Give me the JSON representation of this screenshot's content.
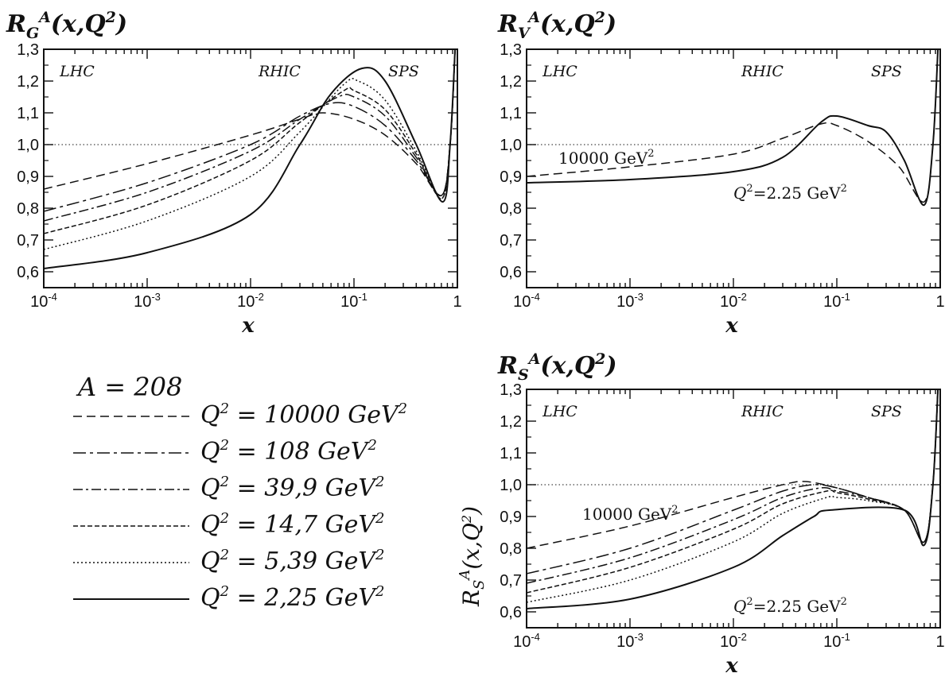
{
  "legend": {
    "a_label": "A = 208",
    "entries": [
      {
        "q2": "Q",
        "eq": " = 10000 GeV",
        "style": "dash"
      },
      {
        "q2": "Q",
        "eq": " = 108  GeV",
        "style": "longdash"
      },
      {
        "q2": "Q",
        "eq": " = 39,9 GeV",
        "style": "dashdot"
      },
      {
        "q2": "Q",
        "eq": " = 14,7 GeV",
        "style": "shortdash"
      },
      {
        "q2": "Q",
        "eq": " = 5,39 GeV",
        "style": "dot"
      },
      {
        "q2": "Q",
        "eq": " = 2,25 GeV",
        "style": "solid"
      }
    ]
  },
  "x_tick_labels": [
    "10",
    "10",
    "10",
    "10",
    "1"
  ],
  "x_tick_exps": [
    "-4",
    "-3",
    "-2",
    "-1",
    ""
  ],
  "y_tick_labels": [
    "0,6",
    "0,7",
    "0,8",
    "0,9",
    "1,0",
    "1,1",
    "1,2",
    "1,3"
  ],
  "regions": [
    "LHC",
    "RHIC",
    "SPS"
  ],
  "panels": {
    "g": {
      "title_main": "R",
      "title_sub": "G",
      "title_sup": "A",
      "title_rest": "(x,Q",
      "xlabel": "x"
    },
    "v": {
      "title_main": "R",
      "title_sub": "V",
      "title_sup": "A",
      "title_rest": "(x,Q",
      "xlabel": "x",
      "ann_high": "10000 GeV",
      "ann_low_pre": "Q",
      "ann_low": "=2.25 GeV"
    },
    "s": {
      "title_main": "R",
      "title_sub": "S",
      "title_sup": "A",
      "title_rest": "(x,Q",
      "xlabel": "x",
      "ylabel": "R",
      "ann_high": "10000 GeV",
      "ann_low_pre": "Q",
      "ann_low": "=2.25 GeV"
    }
  },
  "chart_data": [
    {
      "type": "line",
      "title": "R_G^A(x,Q^2)",
      "xlabel": "x",
      "xscale": "log",
      "xlim": [
        0.0001,
        1
      ],
      "ylim": [
        0.55,
        1.3
      ],
      "reference_line": 1.0,
      "series": [
        {
          "name": "Q^2 = 10000 GeV^2",
          "x": [
            0.0001,
            0.001,
            0.01,
            0.03,
            0.05,
            0.1,
            0.2,
            0.4,
            0.7,
            0.85,
            0.95
          ],
          "y": [
            0.86,
            0.94,
            1.03,
            1.08,
            1.1,
            1.08,
            1.03,
            0.94,
            0.84,
            1.0,
            1.3
          ]
        },
        {
          "name": "Q^2 = 108 GeV^2",
          "x": [
            0.0001,
            0.001,
            0.01,
            0.03,
            0.06,
            0.1,
            0.2,
            0.4,
            0.7,
            0.85,
            0.95
          ],
          "y": [
            0.79,
            0.88,
            1.0,
            1.09,
            1.13,
            1.12,
            1.06,
            0.95,
            0.84,
            1.0,
            1.3
          ]
        },
        {
          "name": "Q^2 = 39,9 GeV^2",
          "x": [
            0.0001,
            0.001,
            0.01,
            0.03,
            0.07,
            0.1,
            0.2,
            0.4,
            0.7,
            0.85,
            0.95
          ],
          "y": [
            0.76,
            0.85,
            0.98,
            1.08,
            1.15,
            1.15,
            1.09,
            0.96,
            0.84,
            1.0,
            1.3
          ]
        },
        {
          "name": "Q^2 = 14,7 GeV^2",
          "x": [
            0.0001,
            0.001,
            0.01,
            0.03,
            0.08,
            0.1,
            0.2,
            0.4,
            0.7,
            0.85,
            0.95
          ],
          "y": [
            0.72,
            0.81,
            0.95,
            1.07,
            1.17,
            1.17,
            1.11,
            0.97,
            0.83,
            1.0,
            1.3
          ]
        },
        {
          "name": "Q^2 = 5,39 GeV^2",
          "x": [
            0.0001,
            0.001,
            0.01,
            0.03,
            0.08,
            0.11,
            0.2,
            0.4,
            0.7,
            0.85,
            0.95
          ],
          "y": [
            0.67,
            0.76,
            0.9,
            1.04,
            1.19,
            1.2,
            1.14,
            0.98,
            0.83,
            1.0,
            1.3
          ]
        },
        {
          "name": "Q^2 = 2,25 GeV^2",
          "x": [
            0.0001,
            0.001,
            0.01,
            0.03,
            0.06,
            0.12,
            0.2,
            0.4,
            0.72,
            0.85,
            0.95
          ],
          "y": [
            0.61,
            0.66,
            0.78,
            1.0,
            1.16,
            1.24,
            1.2,
            1.0,
            0.82,
            1.0,
            1.3
          ]
        }
      ]
    },
    {
      "type": "line",
      "title": "R_V^A(x,Q^2)",
      "xlabel": "x",
      "xscale": "log",
      "xlim": [
        0.0001,
        1
      ],
      "ylim": [
        0.55,
        1.3
      ],
      "reference_line": 1.0,
      "series": [
        {
          "name": "10000 GeV^2",
          "x": [
            0.0001,
            0.001,
            0.01,
            0.03,
            0.07,
            0.1,
            0.2,
            0.4,
            0.7,
            0.85,
            0.95
          ],
          "y": [
            0.9,
            0.93,
            0.97,
            1.02,
            1.065,
            1.06,
            1.01,
            0.93,
            0.82,
            1.0,
            1.3
          ]
        },
        {
          "name": "Q^2=2.25 GeV^2",
          "x": [
            0.0001,
            0.001,
            0.01,
            0.03,
            0.07,
            0.1,
            0.2,
            0.3,
            0.45,
            0.7,
            0.85,
            0.95
          ],
          "y": [
            0.88,
            0.89,
            0.915,
            0.96,
            1.07,
            1.09,
            1.06,
            1.04,
            0.95,
            0.81,
            1.0,
            1.3
          ]
        }
      ]
    },
    {
      "type": "line",
      "title": "R_S^A(x,Q^2)",
      "xlabel": "x",
      "ylabel": "R_S^A(x,Q^2)",
      "xscale": "log",
      "xlim": [
        0.0001,
        1
      ],
      "ylim": [
        0.55,
        1.3
      ],
      "reference_line": 1.0,
      "series": [
        {
          "name": "10000 GeV^2",
          "x": [
            0.0001,
            0.001,
            0.01,
            0.03,
            0.05,
            0.1,
            0.2,
            0.45,
            0.7,
            0.85,
            0.95
          ],
          "y": [
            0.8,
            0.87,
            0.96,
            1.0,
            1.01,
            0.99,
            0.96,
            0.92,
            0.82,
            1.0,
            1.3
          ]
        },
        {
          "name": "Q^2 = 108 GeV^2",
          "x": [
            0.0001,
            0.001,
            0.01,
            0.03,
            0.06,
            0.1,
            0.2,
            0.45,
            0.7,
            0.85,
            0.95
          ],
          "y": [
            0.72,
            0.8,
            0.92,
            0.98,
            1.0,
            0.99,
            0.96,
            0.92,
            0.82,
            1.0,
            1.3
          ]
        },
        {
          "name": "Q^2 = 39,9 GeV^2",
          "x": [
            0.0001,
            0.001,
            0.01,
            0.03,
            0.07,
            0.1,
            0.2,
            0.45,
            0.7,
            0.85,
            0.95
          ],
          "y": [
            0.69,
            0.77,
            0.89,
            0.96,
            0.99,
            0.98,
            0.96,
            0.92,
            0.82,
            1.0,
            1.3
          ]
        },
        {
          "name": "Q^2 = 14,7 GeV^2",
          "x": [
            0.0001,
            0.001,
            0.01,
            0.03,
            0.08,
            0.1,
            0.2,
            0.45,
            0.7,
            0.85,
            0.95
          ],
          "y": [
            0.66,
            0.74,
            0.86,
            0.94,
            0.98,
            0.975,
            0.955,
            0.92,
            0.82,
            1.0,
            1.3
          ]
        },
        {
          "name": "Q^2 = 5,39 GeV^2",
          "x": [
            0.0001,
            0.001,
            0.01,
            0.03,
            0.08,
            0.1,
            0.2,
            0.45,
            0.7,
            0.85,
            0.95
          ],
          "y": [
            0.63,
            0.7,
            0.82,
            0.91,
            0.96,
            0.96,
            0.95,
            0.92,
            0.82,
            1.0,
            1.3
          ]
        },
        {
          "name": "Q^2=2.25 GeV^2",
          "x": [
            0.0001,
            0.001,
            0.01,
            0.03,
            0.06,
            0.085,
            0.45,
            0.7,
            0.85,
            0.95
          ],
          "y": [
            0.61,
            0.64,
            0.74,
            0.84,
            0.9,
            0.92,
            0.92,
            0.81,
            1.0,
            1.3
          ]
        }
      ]
    }
  ]
}
